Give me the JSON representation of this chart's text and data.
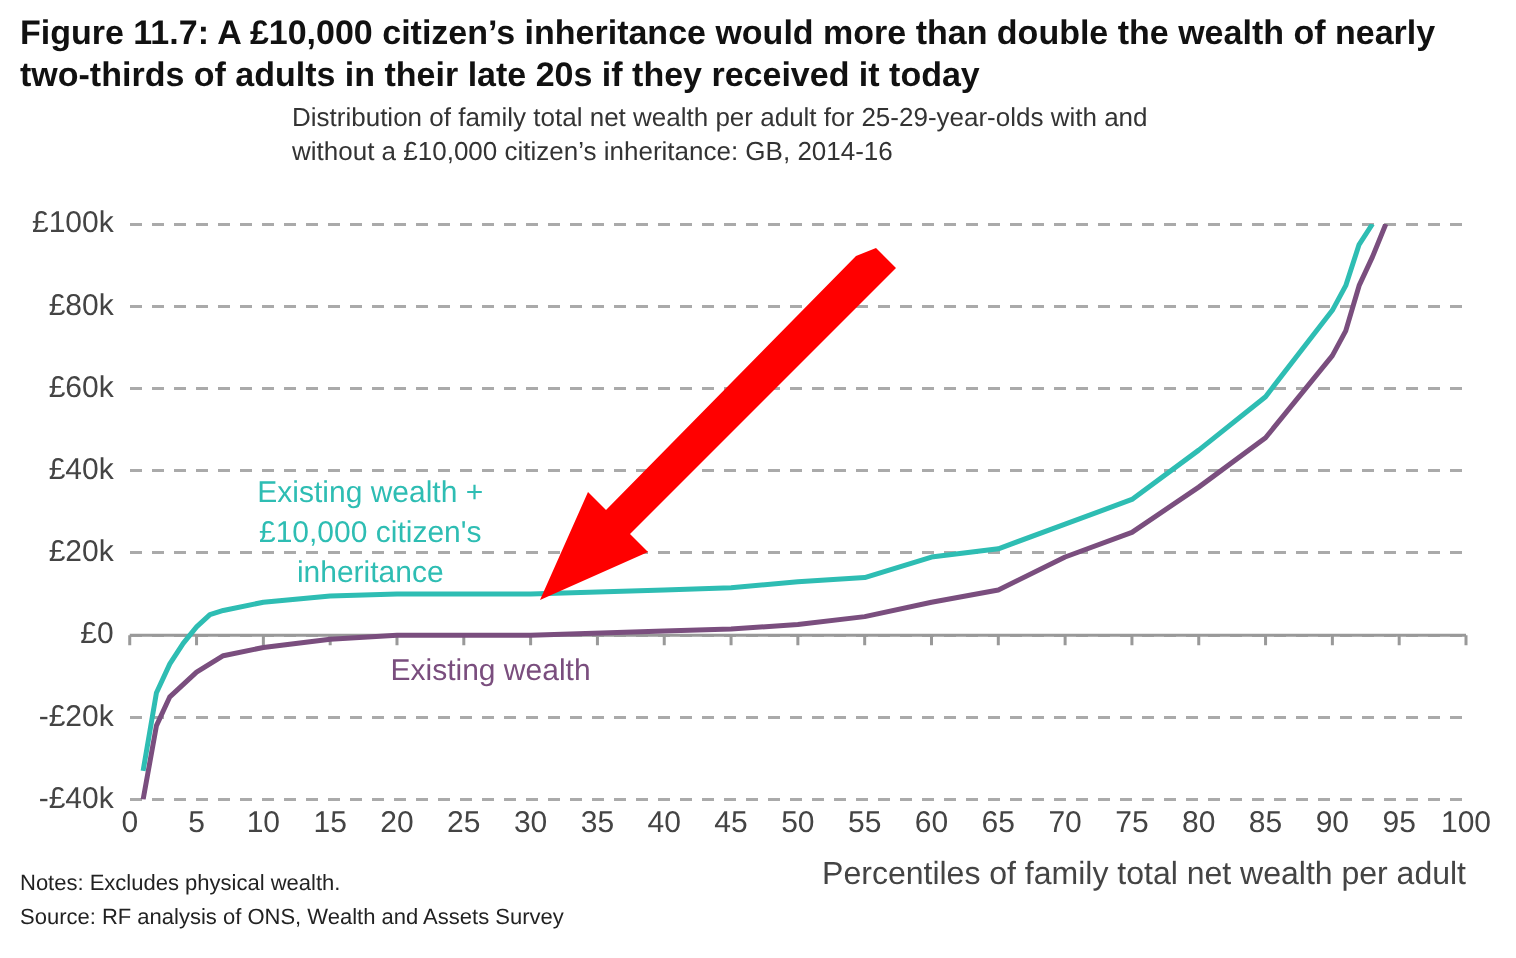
{
  "chart_data": {
    "type": "line",
    "title": "Figure 11.7: A £10,000 citizen’s inheritance would more than double the wealth of nearly two-thirds of adults in their late 20s if they received it today",
    "subtitle": "Distribution of family total net wealth per adult for 25-29-year-olds with and without a £10,000 citizen’s inheritance: GB, 2014-16",
    "xlabel": "Percentiles of family total net wealth per adult",
    "annotations": [
      "Notes: Excludes physical wealth.",
      "Source: RF analysis of ONS, Wealth and Assets Survey"
    ],
    "xlim": [
      0,
      100
    ],
    "xticks": [
      0,
      5,
      10,
      15,
      20,
      25,
      30,
      35,
      40,
      45,
      50,
      55,
      60,
      65,
      70,
      75,
      80,
      85,
      90,
      95,
      100
    ],
    "ylim": [
      -40,
      100
    ],
    "yticks": [
      {
        "value": -40,
        "label": "-£40k"
      },
      {
        "value": -20,
        "label": "-£20k"
      },
      {
        "value": 0,
        "label": "£0"
      },
      {
        "value": 20,
        "label": "£20k"
      },
      {
        "value": 40,
        "label": "£40k"
      },
      {
        "value": 60,
        "label": "£60k"
      },
      {
        "value": 80,
        "label": "£80k"
      },
      {
        "value": 100,
        "label": "£100k"
      }
    ],
    "grid": "y",
    "legend": false,
    "marker": "none",
    "line_style": "solid",
    "series": [
      {
        "name": "Existing wealth + £10,000 citizen's inheritance",
        "color": "#2ebdb3",
        "x": [
          1,
          2,
          3,
          4,
          5,
          6,
          7,
          10,
          15,
          20,
          30,
          40,
          45,
          50,
          55,
          60,
          65,
          70,
          75,
          80,
          85,
          90,
          91,
          92,
          93
        ],
        "values": [
          -33,
          -14,
          -7,
          -2,
          2,
          5,
          6,
          8,
          9.5,
          10,
          10,
          11,
          11.5,
          13,
          14,
          19,
          21,
          27,
          33,
          45,
          58,
          79,
          85,
          95,
          100
        ]
      },
      {
        "name": "Existing wealth",
        "color": "#7a4e7e",
        "x": [
          1,
          2,
          3,
          5,
          7,
          10,
          15,
          20,
          30,
          40,
          45,
          50,
          55,
          60,
          65,
          70,
          75,
          80,
          85,
          90,
          91,
          92,
          93,
          94
        ],
        "values": [
          -40,
          -22,
          -15,
          -9,
          -5,
          -3,
          -1,
          0,
          0,
          1,
          1.5,
          2.6,
          4.5,
          8,
          11,
          19,
          25,
          36,
          48,
          68,
          74,
          85,
          92,
          100
        ]
      }
    ]
  }
}
